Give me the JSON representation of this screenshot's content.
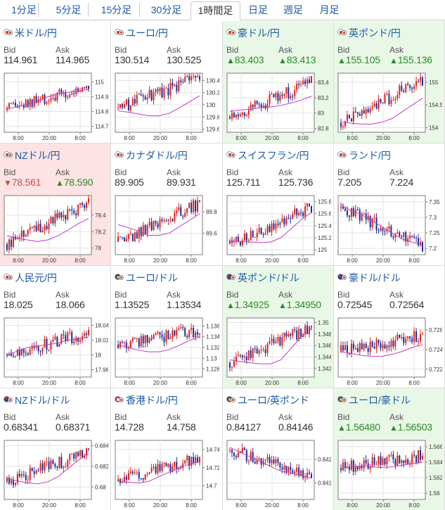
{
  "tabs": [
    {
      "label": "1分足",
      "active": false
    },
    {
      "label": "5分足",
      "active": false
    },
    {
      "label": "15分足",
      "active": false
    },
    {
      "label": "30分足",
      "active": false
    },
    {
      "label": "1時間足",
      "active": true
    },
    {
      "label": "日足",
      "active": false
    },
    {
      "label": "週足",
      "active": false
    },
    {
      "label": "月足",
      "active": false
    }
  ],
  "labels": {
    "bid": "Bid",
    "ask": "Ask"
  },
  "colors": {
    "link": "#1a5aa6",
    "up": "#2a8a2a",
    "down": "#d04848",
    "up_bg": "#e9f8e6",
    "down_bg": "#fde3e3",
    "candle_up": "#e0201b",
    "candle_down": "#1a2f9a",
    "ma": "#c23ac2"
  },
  "pairs": [
    {
      "name": "米ドル/円",
      "flag": "jp",
      "bid": "114.961",
      "ask": "114.965",
      "trend": "flat",
      "bid_arrow": "",
      "ask_arrow": "",
      "chart_data": {
        "type": "candlestick",
        "x_ticks": [
          "8:00",
          "20:00",
          "8:00"
        ],
        "y_ticks": [
          "115",
          "114.9",
          "114.8",
          "114.7"
        ],
        "ylim": [
          114.66,
          115.06
        ],
        "y_tick_values": [
          115,
          114.9,
          114.8,
          114.7
        ],
        "ma": [
          114.82,
          114.83,
          114.85,
          114.87,
          114.9,
          114.92,
          114.93,
          114.94,
          114.95
        ],
        "start": 114.81,
        "end": 114.96
      }
    },
    {
      "name": "ユーロ/円",
      "flag": "jp",
      "bid": "130.514",
      "ask": "130.525",
      "trend": "flat",
      "bid_arrow": "",
      "ask_arrow": "",
      "chart_data": {
        "type": "candlestick",
        "x_ticks": [
          "8:00",
          "20:00",
          "8:00"
        ],
        "y_ticks": [
          "130.4",
          "130.2",
          "130",
          "129.8",
          "129.6"
        ],
        "ylim": [
          129.55,
          130.52
        ],
        "y_tick_values": [
          130.4,
          130.2,
          130,
          129.8,
          129.6
        ],
        "ma": [
          129.9,
          129.88,
          129.85,
          129.82,
          129.82,
          129.86,
          129.95,
          130.05,
          130.15
        ],
        "start": 129.95,
        "end": 130.45
      }
    },
    {
      "name": "豪ドル/円",
      "flag": "jp",
      "bid": "83.403",
      "ask": "83.413",
      "trend": "up",
      "bid_arrow": "▲",
      "ask_arrow": "▲",
      "chart_data": {
        "type": "candlestick",
        "x_ticks": [
          "8:00",
          "20:00",
          "8:00"
        ],
        "y_ticks": [
          "83.4",
          "83.2",
          "83",
          "82.8"
        ],
        "ylim": [
          82.75,
          83.52
        ],
        "y_tick_values": [
          83.4,
          83.2,
          83,
          82.8
        ],
        "ma": [
          83.02,
          83.04,
          83.05,
          83.07,
          83.08,
          83.1,
          83.13,
          83.17,
          83.22
        ],
        "start": 82.95,
        "end": 83.4
      }
    },
    {
      "name": "英ポンド/円",
      "flag": "jp",
      "bid": "155.105",
      "ask": "155.136",
      "trend": "up",
      "bid_arrow": "▲",
      "ask_arrow": "▲",
      "chart_data": {
        "type": "candlestick",
        "x_ticks": [
          "8:00",
          "20:00",
          "8:00"
        ],
        "y_ticks": [
          "155",
          "154.5",
          "154"
        ],
        "ylim": [
          153.9,
          155.2
        ],
        "y_tick_values": [
          155,
          154.5,
          154
        ],
        "ma": [
          154.12,
          154.1,
          154.08,
          154.08,
          154.12,
          154.2,
          154.35,
          154.5,
          154.65
        ],
        "start": 154.1,
        "end": 155.05
      }
    },
    {
      "name": "NZドル/円",
      "flag": "jp",
      "bid": "78.561",
      "ask": "78.590",
      "trend": "mixed",
      "bid_arrow": "▼",
      "ask_arrow": "▲",
      "chart_data": {
        "type": "candlestick",
        "x_ticks": [
          "8:00",
          "20:00",
          "8:00"
        ],
        "y_ticks": [
          "78.4",
          "78.2",
          "78"
        ],
        "ylim": [
          77.92,
          78.64
        ],
        "y_tick_values": [
          78.4,
          78.2,
          78
        ],
        "ma": [
          78.15,
          78.12,
          78.1,
          78.08,
          78.1,
          78.15,
          78.22,
          78.3,
          78.36
        ],
        "start": 78.05,
        "end": 78.55
      }
    },
    {
      "name": "カナダドル/円",
      "flag": "jp",
      "bid": "89.905",
      "ask": "89.931",
      "trend": "flat",
      "bid_arrow": "",
      "ask_arrow": "",
      "chart_data": {
        "type": "candlestick",
        "x_ticks": [
          "8:00",
          "20:00",
          "8:00"
        ],
        "y_ticks": [
          "89.8",
          "89.6"
        ],
        "ylim": [
          89.4,
          89.95
        ],
        "y_tick_values": [
          89.8,
          89.6
        ],
        "ma": [
          89.68,
          89.65,
          89.62,
          89.58,
          89.58,
          89.6,
          89.66,
          89.72,
          89.78
        ],
        "start": 89.52,
        "end": 89.88
      }
    },
    {
      "name": "スイスフラン/円",
      "flag": "jp",
      "bid": "125.711",
      "ask": "125.736",
      "trend": "flat",
      "bid_arrow": "",
      "ask_arrow": "",
      "chart_data": {
        "type": "candlestick",
        "x_ticks": [
          "8:00",
          "20:00",
          "8:00"
        ],
        "y_ticks": [
          "125.8",
          "125.6",
          "125.4",
          "125.2",
          "125"
        ],
        "ylim": [
          124.92,
          125.9
        ],
        "y_tick_values": [
          125.8,
          125.6,
          125.4,
          125.2,
          125
        ],
        "ma": [
          125.15,
          125.14,
          125.13,
          125.12,
          125.13,
          125.2,
          125.35,
          125.5,
          125.62
        ],
        "start": 125.1,
        "end": 125.72
      }
    },
    {
      "name": "ランド/円",
      "flag": "jp",
      "bid": "7.205",
      "ask": "7.224",
      "trend": "flat",
      "bid_arrow": "",
      "ask_arrow": "",
      "chart_data": {
        "type": "candlestick",
        "x_ticks": [
          "8:00",
          "20:00",
          "8:00"
        ],
        "y_ticks": [
          "7.35",
          "7.3",
          "7.25",
          "7.2"
        ],
        "ylim": [
          7.18,
          7.37
        ],
        "y_tick_values": [
          7.35,
          7.3,
          7.25,
          7.2
        ],
        "ma": [
          7.34,
          7.32,
          7.31,
          7.29,
          7.27,
          7.25,
          7.23,
          7.22,
          7.21
        ],
        "start": 7.33,
        "end": 7.21
      }
    },
    {
      "name": "人民元/円",
      "flag": "jp",
      "bid": "18.025",
      "ask": "18.066",
      "trend": "flat",
      "bid_arrow": "",
      "ask_arrow": "",
      "chart_data": {
        "type": "candlestick",
        "x_ticks": [
          "8:00",
          "20:00",
          "8:00"
        ],
        "y_ticks": [
          "18.04",
          "18.02",
          "18",
          "17.98"
        ],
        "ylim": [
          17.97,
          18.05
        ],
        "y_tick_values": [
          18.04,
          18.02,
          18,
          17.98
        ],
        "ma": [
          18.0,
          18.005,
          18.01,
          18.012,
          18.014,
          18.016,
          18.02,
          18.022,
          18.024
        ],
        "start": 18.0,
        "end": 18.03
      }
    },
    {
      "name": "ユーロ/ドル",
      "flag": "eu",
      "bid": "1.13525",
      "ask": "1.13534",
      "trend": "flat",
      "bid_arrow": "",
      "ask_arrow": "",
      "chart_data": {
        "type": "candlestick",
        "x_ticks": [
          "8:00",
          "20:00",
          "8:00"
        ],
        "y_ticks": [
          "1.136",
          "1.134",
          "1.132",
          "1.13",
          "1.128"
        ],
        "ylim": [
          1.1265,
          1.1375
        ],
        "y_tick_values": [
          1.136,
          1.134,
          1.132,
          1.13,
          1.128
        ],
        "ma": [
          1.1325,
          1.132,
          1.1315,
          1.1312,
          1.1312,
          1.1316,
          1.1324,
          1.1333,
          1.134
        ],
        "start": 1.1325,
        "end": 1.1352
      }
    },
    {
      "name": "英ポンド/ドル",
      "flag": "gb",
      "bid": "1.34925",
      "ask": "1.34950",
      "trend": "up",
      "bid_arrow": "▲",
      "ask_arrow": "▲",
      "chart_data": {
        "type": "candlestick",
        "x_ticks": [
          "8:00",
          "20:00",
          "8:00"
        ],
        "y_ticks": [
          "1.35",
          "1.348",
          "1.346",
          "1.344",
          "1.342"
        ],
        "ylim": [
          1.3405,
          1.3508
        ],
        "y_tick_values": [
          1.35,
          1.348,
          1.346,
          1.344,
          1.342
        ],
        "ma": [
          1.3435,
          1.3432,
          1.343,
          1.3428,
          1.3428,
          1.3435,
          1.3455,
          1.3475,
          1.349
        ],
        "start": 1.343,
        "end": 1.3492
      }
    },
    {
      "name": "豪ドル/ドル",
      "flag": "au",
      "bid": "0.72545",
      "ask": "0.72564",
      "trend": "flat",
      "bid_arrow": "",
      "ask_arrow": "",
      "chart_data": {
        "type": "candlestick",
        "x_ticks": [
          "8:00",
          "20:00",
          "8:00"
        ],
        "y_ticks": [
          "0.726",
          "0.724",
          "0.722"
        ],
        "ylim": [
          0.7212,
          0.7272
        ],
        "y_tick_values": [
          0.726,
          0.724,
          0.722
        ],
        "ma": [
          0.7238,
          0.7236,
          0.7234,
          0.7233,
          0.7233,
          0.7235,
          0.7238,
          0.7242,
          0.7245
        ],
        "start": 0.7238,
        "end": 0.7254
      }
    },
    {
      "name": "NZドル/ドル",
      "flag": "nz",
      "bid": "0.68341",
      "ask": "0.68371",
      "trend": "flat",
      "bid_arrow": "",
      "ask_arrow": "",
      "chart_data": {
        "type": "candlestick",
        "x_ticks": [
          "8:00",
          "20:00",
          "8:00"
        ],
        "y_ticks": [
          "0.684",
          "0.682",
          "0.68"
        ],
        "ylim": [
          0.6788,
          0.6845
        ],
        "y_tick_values": [
          0.684,
          0.682,
          0.68
        ],
        "ma": [
          0.6808,
          0.6806,
          0.6804,
          0.6803,
          0.6805,
          0.681,
          0.6818,
          0.6826,
          0.6832
        ],
        "start": 0.6805,
        "end": 0.6834
      }
    },
    {
      "name": "香港ドル/円",
      "flag": "hk",
      "bid": "14.728",
      "ask": "14.758",
      "trend": "flat",
      "bid_arrow": "",
      "ask_arrow": "",
      "chart_data": {
        "type": "candlestick",
        "x_ticks": [
          "8:00",
          "20:00",
          "8:00"
        ],
        "y_ticks": [
          "14.74",
          "14.72",
          "14.7"
        ],
        "ylim": [
          14.685,
          14.75
        ],
        "y_tick_values": [
          14.74,
          14.72,
          14.7
        ],
        "ma": [
          14.705,
          14.704,
          14.703,
          14.705,
          14.71,
          14.715,
          14.72,
          14.724,
          14.727
        ],
        "start": 14.705,
        "end": 14.73
      }
    },
    {
      "name": "ユーロ/英ポンド",
      "flag": "eu",
      "bid": "0.84127",
      "ask": "0.84146",
      "trend": "flat",
      "bid_arrow": "",
      "ask_arrow": "",
      "chart_data": {
        "type": "candlestick",
        "x_ticks": [
          "8:00",
          "20:00",
          "8:00"
        ],
        "y_ticks": [
          "0.842",
          "0.841"
        ],
        "ylim": [
          0.8403,
          0.8428
        ],
        "y_tick_values": [
          0.842,
          0.841
        ],
        "ma": [
          0.8425,
          0.8423,
          0.8421,
          0.8419,
          0.8417,
          0.8415,
          0.8414,
          0.8413,
          0.8412
        ],
        "start": 0.8424,
        "end": 0.8413
      }
    },
    {
      "name": "ユーロ/豪ドル",
      "flag": "eu",
      "bid": "1.56480",
      "ask": "1.56503",
      "trend": "up",
      "bid_arrow": "▲",
      "ask_arrow": "▲",
      "chart_data": {
        "type": "candlestick",
        "x_ticks": [
          "8:00",
          "20:00",
          "8:00"
        ],
        "y_ticks": [
          "1.566",
          "1.564",
          "1.562",
          "1.56"
        ],
        "ylim": [
          1.5592,
          1.5668
        ],
        "y_tick_values": [
          1.566,
          1.564,
          1.562,
          1.56
        ],
        "ma": [
          1.5632,
          1.5634,
          1.5635,
          1.5634,
          1.5633,
          1.5634,
          1.5636,
          1.5638,
          1.564
        ],
        "start": 1.5632,
        "end": 1.5648
      }
    }
  ]
}
